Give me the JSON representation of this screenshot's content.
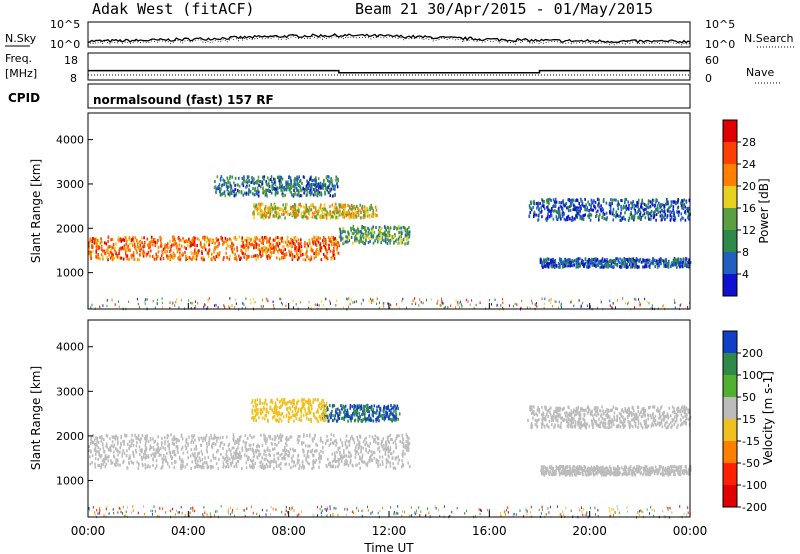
{
  "header": {
    "station": "Adak West (fitACF)",
    "beam_range": "Beam 21  30/Apr/2015 - 01/May/2015"
  },
  "noise_panel": {
    "left_label": "N.Sky",
    "right_label": "N.Search",
    "tick_top": "10^5",
    "tick_bottom": "10^0"
  },
  "freq_panel": {
    "left_label_1": "Freq.",
    "left_label_2": "[MHz]",
    "right_label": "Nave",
    "left_ticks": [
      "18",
      "8"
    ],
    "right_ticks": [
      "60",
      "0"
    ]
  },
  "cpid_panel": {
    "label": "CPID",
    "text": "normalsound (fast) 157 RF"
  },
  "x_axis": {
    "label": "Time UT",
    "ticks": [
      "00:00",
      "04:00",
      "08:00",
      "12:00",
      "16:00",
      "20:00",
      "00:00"
    ]
  },
  "power_panel": {
    "ylabel": "Slant Range [km]",
    "yticks": [
      "1000",
      "2000",
      "3000",
      "4000"
    ],
    "colorbar_label": "Power [dB]",
    "colorbar_ticks": [
      "4",
      "8",
      "12",
      "16",
      "20",
      "24",
      "28"
    ],
    "colors": [
      "#1010d0",
      "#2060c0",
      "#2f8a4a",
      "#5aa040",
      "#e8d020",
      "#ff8000",
      "#ff4000",
      "#e00000"
    ]
  },
  "velocity_panel": {
    "ylabel": "Slant Range [km]",
    "yticks": [
      "1000",
      "2000",
      "3000",
      "4000"
    ],
    "colorbar_label": "Velocity [m s-1]",
    "colorbar_ticks": [
      "200",
      "100",
      "50",
      "15",
      "-15",
      "-50",
      "-100",
      "-200"
    ],
    "colors": [
      "#1040c8",
      "#2f8a4a",
      "#4fb030",
      "#bcbcbc",
      "#f0c020",
      "#ff8000",
      "#ff2000",
      "#e00000"
    ]
  },
  "chart_data": {
    "type": "heatmap",
    "x_range_hours": [
      0,
      24
    ],
    "y_range_km": [
      180,
      4600
    ],
    "panels": [
      {
        "name": "Power",
        "scatter_bands": [
          {
            "t_start": 0.0,
            "t_end": 10.0,
            "range_center_km": 1580,
            "range_halfwidth_km": 260,
            "power_db": 24
          },
          {
            "t_start": 10.0,
            "t_end": 12.8,
            "range_center_km": 1880,
            "range_halfwidth_km": 200,
            "power_db": 12
          },
          {
            "t_start": 5.0,
            "t_end": 10.0,
            "range_center_km": 2980,
            "range_halfwidth_km": 220,
            "power_db": 8
          },
          {
            "t_start": 6.5,
            "t_end": 11.5,
            "range_center_km": 2420,
            "range_halfwidth_km": 160,
            "power_db": 18
          },
          {
            "t_start": 18.0,
            "t_end": 24.0,
            "range_center_km": 1250,
            "range_halfwidth_km": 100,
            "power_db": 6
          },
          {
            "t_start": 17.5,
            "t_end": 24.0,
            "range_center_km": 2450,
            "range_halfwidth_km": 240,
            "power_db": 6
          }
        ]
      },
      {
        "name": "Velocity",
        "scatter_bands": [
          {
            "t_start": 0.0,
            "t_end": 12.8,
            "range_center_km": 1680,
            "range_halfwidth_km": 380,
            "velocity": 0
          },
          {
            "t_start": 9.3,
            "t_end": 12.4,
            "range_center_km": 2540,
            "range_halfwidth_km": 180,
            "velocity": 150
          },
          {
            "t_start": 6.5,
            "t_end": 9.5,
            "range_center_km": 2600,
            "range_halfwidth_km": 250,
            "velocity": -30
          },
          {
            "t_start": 18.0,
            "t_end": 24.0,
            "range_center_km": 1250,
            "range_halfwidth_km": 100,
            "velocity": 0
          },
          {
            "t_start": 17.5,
            "t_end": 24.0,
            "range_center_km": 2450,
            "range_halfwidth_km": 240,
            "velocity": 0
          }
        ]
      }
    ],
    "frequency_mhz": [
      {
        "t_start": 0,
        "t_end": 10,
        "value": 11.5
      },
      {
        "t_start": 10,
        "t_end": 18,
        "value": 10.5
      },
      {
        "t_start": 18,
        "t_end": 24,
        "value": 11.5
      }
    ]
  }
}
